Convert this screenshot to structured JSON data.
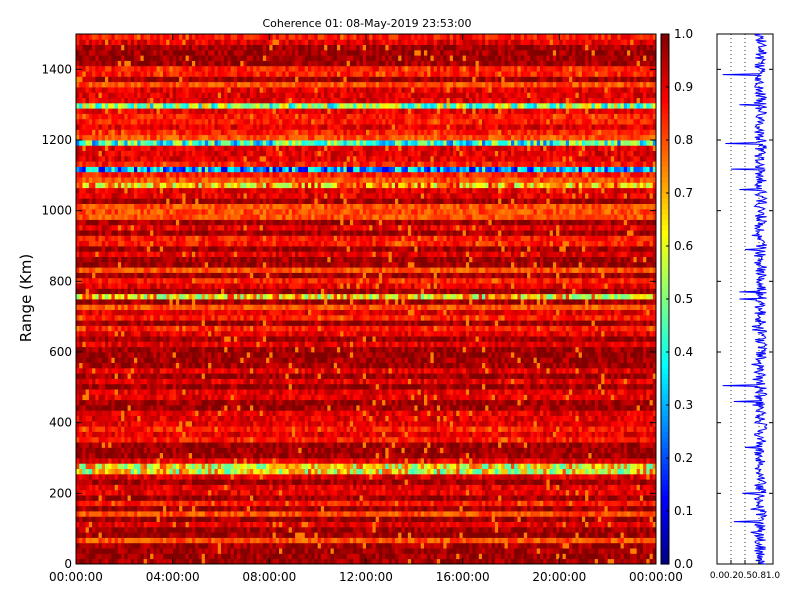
{
  "chart_data": [
    {
      "type": "heatmap",
      "title": "Coherence 01: 08-May-2019 23:53:00",
      "ylabel": "Range (Km)",
      "xlabel": "",
      "x_ticks": [
        "00:00:00",
        "04:00:00",
        "08:00:00",
        "12:00:00",
        "16:00:00",
        "20:00:00",
        "00:00:00"
      ],
      "x_tick_values_hours": [
        0,
        4,
        8,
        12,
        16,
        20,
        24
      ],
      "xlim_hours": [
        0,
        24
      ],
      "y_ticks": [
        "0",
        "200",
        "400",
        "600",
        "800",
        "1000",
        "1200",
        "1400"
      ],
      "y_tick_values": [
        0,
        200,
        400,
        600,
        800,
        1000,
        1200,
        1400
      ],
      "ylim": [
        0,
        1500
      ],
      "colormap": "jet",
      "colorbar": {
        "ticks": [
          "0.0",
          "0.1",
          "0.2",
          "0.3",
          "0.4",
          "0.5",
          "0.6",
          "0.7",
          "0.8",
          "0.9",
          "1.0"
        ],
        "tick_values": [
          0,
          0.1,
          0.2,
          0.3,
          0.4,
          0.5,
          0.6,
          0.7,
          0.8,
          0.9,
          1.0
        ],
        "range": [
          0,
          1
        ]
      },
      "range_step_km": 15,
      "time_bins": 180,
      "low_coherence_bands_km": [
        {
          "center": 1303,
          "value": 0.5
        },
        {
          "center": 1190,
          "value": 0.42
        },
        {
          "center": 1117,
          "value": 0.28
        },
        {
          "center": 757,
          "value": 0.65
        },
        {
          "center": 270,
          "value": 0.62
        },
        {
          "center": 1075,
          "value": 0.7
        }
      ]
    },
    {
      "type": "line",
      "title": "",
      "xlabel": "",
      "ylabel": "",
      "x_ticks": [
        "0.0",
        "0.2",
        "0.5",
        "0.8",
        "1.0"
      ],
      "x_tick_values": [
        0.0,
        0.25,
        0.5,
        0.75,
        1.0
      ],
      "xlim": [
        0,
        1
      ],
      "ylim": [
        0,
        1500
      ],
      "grid": "dotted vertical",
      "series_color": "#0000ff",
      "spikes": [
        {
          "range_km": 1385,
          "value": 0.1
        },
        {
          "range_km": 1300,
          "value": 0.4
        },
        {
          "range_km": 1190,
          "value": 0.15
        },
        {
          "range_km": 1117,
          "value": 0.25
        },
        {
          "range_km": 1060,
          "value": 0.4
        },
        {
          "range_km": 890,
          "value": 0.5
        },
        {
          "range_km": 770,
          "value": 0.4
        },
        {
          "range_km": 750,
          "value": 0.4
        },
        {
          "range_km": 505,
          "value": 0.1
        },
        {
          "range_km": 460,
          "value": 0.3
        },
        {
          "range_km": 330,
          "value": 0.5
        },
        {
          "range_km": 200,
          "value": 0.45
        },
        {
          "range_km": 155,
          "value": 0.6
        },
        {
          "range_km": 120,
          "value": 0.3
        }
      ]
    }
  ]
}
